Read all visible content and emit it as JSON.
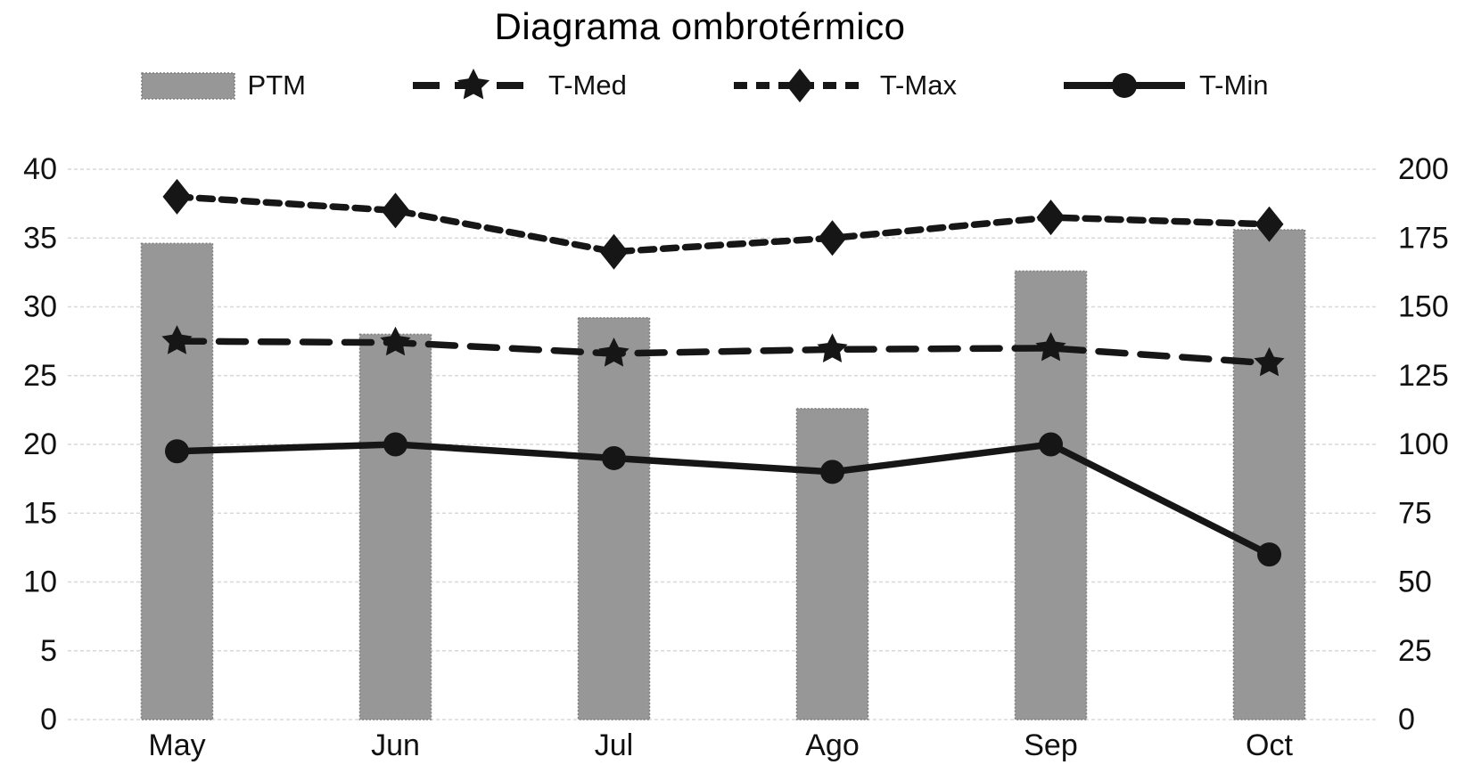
{
  "title": "Diagrama ombrotérmico",
  "colors": {
    "bar": "#979797",
    "bar_border": "#7d7d7d",
    "line": "#161616",
    "grid": "#d8d8d8",
    "text": "#111111"
  },
  "legend": [
    {
      "label": "PTM",
      "type": "bar"
    },
    {
      "label": "T-Med",
      "type": "dashed-star"
    },
    {
      "label": "T-Max",
      "type": "dotted-diamond"
    },
    {
      "label": "T-Min",
      "type": "solid-circle"
    }
  ],
  "chart_data": {
    "type": "bar",
    "subtype": "combo-bar-line",
    "title": "Diagrama ombrotérmico",
    "categories": [
      "May",
      "Jun",
      "Jul",
      "Ago",
      "Sep",
      "Oct"
    ],
    "series": [
      {
        "name": "PTM",
        "type": "bar",
        "axis": "right",
        "style": "solid",
        "marker": "none",
        "values": [
          173,
          140,
          146,
          113,
          163,
          178
        ]
      },
      {
        "name": "T-Med",
        "type": "line",
        "axis": "left",
        "style": "dashed",
        "marker": "star",
        "values": [
          27.5,
          27.4,
          26.6,
          26.9,
          27.0,
          25.9
        ]
      },
      {
        "name": "T-Max",
        "type": "line",
        "axis": "left",
        "style": "dotted",
        "marker": "diamond",
        "values": [
          38,
          37,
          34,
          35,
          36.5,
          36
        ]
      },
      {
        "name": "T-Min",
        "type": "line",
        "axis": "left",
        "style": "solid",
        "marker": "circle",
        "values": [
          19.5,
          20,
          19,
          18,
          20,
          12
        ]
      }
    ],
    "left_axis": {
      "ticks": [
        0,
        5,
        10,
        15,
        20,
        25,
        30,
        35,
        40
      ],
      "range": [
        0,
        40
      ]
    },
    "right_axis": {
      "ticks": [
        0,
        25,
        50,
        75,
        100,
        125,
        150,
        175,
        200
      ],
      "range": [
        0,
        200
      ]
    },
    "grid": true,
    "gridline_style": "dashed",
    "legend_position": "top"
  }
}
